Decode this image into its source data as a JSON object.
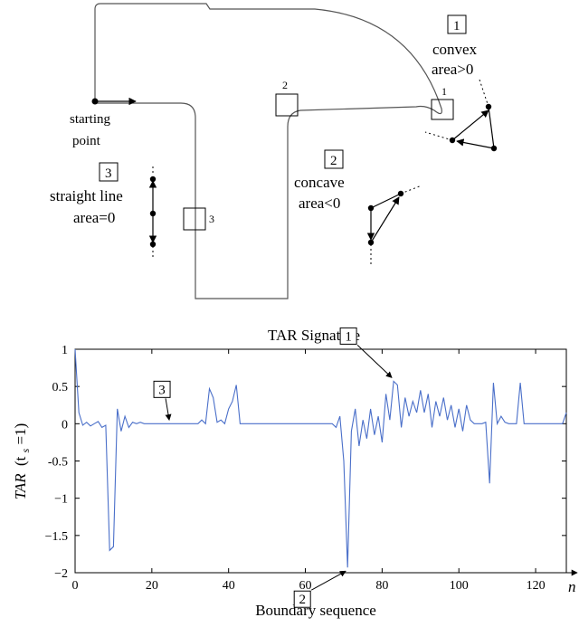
{
  "diagram": {
    "corner_labels": [
      "1",
      "2",
      "3"
    ],
    "start_label": [
      "starting",
      "point"
    ],
    "case1": {
      "number": "1",
      "lines": [
        "convex",
        "area>0"
      ]
    },
    "case2": {
      "number": "2",
      "lines": [
        "concave",
        "area<0"
      ]
    },
    "case3": {
      "number": "3",
      "lines": [
        "straight line",
        "area=0"
      ]
    }
  },
  "chart_data": {
    "type": "line",
    "title": "TAR Signature",
    "xlabel": "Boundary sequence",
    "x_axis_letter": "n",
    "ylabel_main": "TAR",
    "ylabel_param": "(t",
    "ylabel_sub": "s",
    "ylabel_tail": "=1)",
    "xlim": [
      0,
      128
    ],
    "ylim": [
      -2,
      1
    ],
    "xticks": [
      0,
      20,
      40,
      60,
      80,
      100,
      120
    ],
    "yticks": [
      1,
      0.5,
      0,
      -0.5,
      -1,
      -1.5,
      -2
    ],
    "ytick_labels": [
      "1",
      "0.5",
      "0",
      "-0.5",
      "−1",
      "−1.5",
      "−2"
    ],
    "grid": false,
    "line_color": "#4a6fc9",
    "series": [
      {
        "x": [
          0,
          1,
          2,
          3,
          4,
          5,
          6,
          7,
          8,
          9,
          10,
          11,
          12,
          13,
          14,
          15,
          16,
          17,
          18,
          19,
          20,
          21,
          22,
          23,
          24,
          25,
          26,
          27,
          28,
          29,
          30,
          31,
          32,
          33,
          34,
          35,
          36,
          37,
          38,
          39,
          40,
          41,
          42,
          43,
          44,
          45,
          46,
          47,
          48,
          49,
          50,
          51,
          52,
          53,
          54,
          55,
          56,
          57,
          58,
          59,
          60,
          61,
          62,
          63,
          64,
          65,
          66,
          67,
          68,
          69,
          70,
          71,
          72,
          73,
          74,
          75,
          76,
          77,
          78,
          79,
          80,
          81,
          82,
          83,
          84,
          85,
          86,
          87,
          88,
          89,
          90,
          91,
          92,
          93,
          94,
          95,
          96,
          97,
          98,
          99,
          100,
          101,
          102,
          103,
          104,
          105,
          106,
          107,
          108,
          109,
          110,
          111,
          112,
          113,
          114,
          115,
          116,
          117,
          118,
          119,
          120,
          121,
          122,
          123,
          124,
          125,
          126,
          127,
          128
        ],
        "y": [
          1.0,
          0.15,
          -0.02,
          0.02,
          -0.03,
          0.0,
          0.03,
          -0.05,
          -0.02,
          -1.7,
          -1.65,
          0.2,
          -0.1,
          0.1,
          -0.05,
          0.02,
          0.0,
          0.02,
          0.0,
          0.0,
          0.0,
          0.0,
          0.0,
          0.0,
          0.0,
          0.0,
          0.0,
          0.0,
          0.0,
          0.0,
          0.0,
          0.0,
          0.0,
          0.05,
          0.0,
          0.47,
          0.35,
          0.02,
          0.05,
          0.0,
          0.2,
          0.3,
          0.52,
          0.0,
          0.0,
          0.0,
          0.0,
          0.0,
          0.0,
          0.0,
          0.0,
          0.0,
          0.0,
          0.0,
          0.0,
          0.0,
          0.0,
          0.0,
          0.0,
          0.0,
          0.0,
          0.0,
          0.0,
          0.0,
          0.0,
          0.0,
          0.0,
          0.0,
          -0.05,
          0.1,
          -0.5,
          -1.93,
          -0.1,
          0.2,
          -0.3,
          0.05,
          -0.2,
          0.2,
          -0.15,
          0.1,
          -0.25,
          0.4,
          0.05,
          0.57,
          0.52,
          -0.05,
          0.35,
          0.1,
          0.3,
          0.15,
          0.45,
          0.15,
          0.4,
          -0.05,
          0.3,
          0.1,
          0.35,
          0.05,
          0.25,
          -0.05,
          0.2,
          -0.1,
          0.25,
          0.05,
          0.0,
          0.0,
          0.0,
          0.02,
          -0.8,
          0.55,
          0.0,
          0.1,
          0.02,
          0.0,
          0.0,
          0.0,
          0.55,
          0.0,
          0.0,
          0.0,
          0.0,
          0.0,
          0.0,
          0.0,
          0.0,
          0.0,
          0.0,
          0.0,
          0.15
        ]
      }
    ],
    "annotations": [
      {
        "label": "1",
        "x": 83,
        "y": 0.57
      },
      {
        "label": "2",
        "x": 71,
        "y": -1.93
      },
      {
        "label": "3",
        "x": 25,
        "y": 0.0
      }
    ]
  }
}
